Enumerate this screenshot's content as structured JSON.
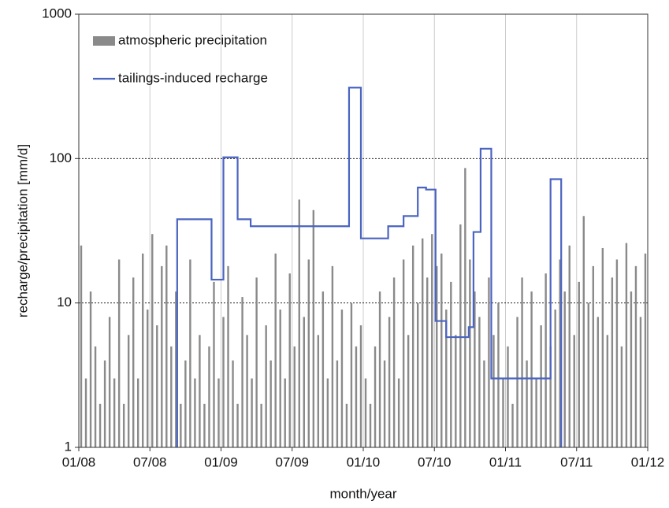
{
  "chart_data": {
    "type": "bar-line",
    "xlabel": "month/year",
    "ylabel": "recharge/precipitation [mm/d]",
    "xlim": [
      0,
      48
    ],
    "xticks": [
      {
        "value": 0,
        "label": "01/08"
      },
      {
        "value": 6,
        "label": "07/08"
      },
      {
        "value": 12,
        "label": "01/09"
      },
      {
        "value": 18,
        "label": "07/09"
      },
      {
        "value": 24,
        "label": "01/10"
      },
      {
        "value": 30,
        "label": "07/10"
      },
      {
        "value": 36,
        "label": "01/11"
      },
      {
        "value": 42,
        "label": "07/11"
      },
      {
        "value": 48,
        "label": "01/12"
      }
    ],
    "ylim": [
      1,
      1000
    ],
    "yticks": [
      1,
      10,
      100,
      1000
    ],
    "log_y": true,
    "grid": true,
    "legend": "upper left",
    "series": [
      {
        "name": "atmospheric precipitation",
        "kind": "bar",
        "color": "#8a8a8a",
        "x": [
          0.2,
          0.6,
          1.0,
          1.4,
          1.8,
          2.2,
          2.6,
          3.0,
          3.4,
          3.8,
          4.2,
          4.6,
          5.0,
          5.4,
          5.8,
          6.2,
          6.6,
          7.0,
          7.4,
          7.8,
          8.2,
          8.6,
          9.0,
          9.4,
          9.8,
          10.2,
          10.6,
          11.0,
          11.4,
          11.8,
          12.2,
          12.6,
          13.0,
          13.4,
          13.8,
          14.2,
          14.6,
          15.0,
          15.4,
          15.8,
          16.2,
          16.6,
          17.0,
          17.4,
          17.8,
          18.2,
          18.6,
          19.0,
          19.4,
          19.8,
          20.2,
          20.6,
          21.0,
          21.4,
          21.8,
          22.2,
          22.6,
          23.0,
          23.4,
          23.8,
          24.2,
          24.6,
          25.0,
          25.4,
          25.8,
          26.2,
          26.6,
          27.0,
          27.4,
          27.8,
          28.2,
          28.6,
          29.0,
          29.4,
          29.8,
          30.2,
          30.6,
          31.0,
          31.4,
          31.8,
          32.2,
          32.6,
          33.0,
          33.4,
          33.8,
          34.2,
          34.6,
          35.0,
          35.4,
          35.8,
          36.2,
          36.6,
          37.0,
          37.4,
          37.8,
          38.2,
          38.6,
          39.0,
          39.4,
          39.8,
          40.2,
          40.6,
          41.0,
          41.4,
          41.8,
          42.2,
          42.6,
          43.0,
          43.4,
          43.8,
          44.2,
          44.6,
          45.0,
          45.4,
          45.8,
          46.2,
          46.6,
          47.0,
          47.4,
          47.8
        ],
        "values": [
          25,
          3,
          12,
          5,
          2,
          4,
          8,
          3,
          20,
          2,
          6,
          15,
          3,
          22,
          9,
          30,
          7,
          18,
          25,
          5,
          12,
          2,
          4,
          20,
          3,
          6,
          2,
          5,
          14,
          3,
          8,
          18,
          4,
          2,
          11,
          6,
          3,
          15,
          2,
          7,
          4,
          22,
          9,
          3,
          16,
          5,
          52,
          8,
          20,
          44,
          6,
          12,
          3,
          18,
          4,
          9,
          2,
          10,
          5,
          7,
          3,
          2,
          5,
          12,
          4,
          8,
          15,
          3,
          20,
          6,
          25,
          10,
          28,
          15,
          30,
          18,
          22,
          9,
          14,
          6,
          35,
          86,
          20,
          12,
          8,
          4,
          15,
          6,
          10,
          3,
          5,
          2,
          8,
          15,
          4,
          12,
          3,
          7,
          16,
          5,
          9,
          20,
          12,
          25,
          6,
          14,
          40,
          10,
          18,
          8,
          24,
          6,
          15,
          20,
          5,
          26,
          12,
          18,
          8,
          22
        ]
      },
      {
        "name": "tailings-induced recharge",
        "kind": "line",
        "color": "#4a64c0",
        "x": [
          8.3,
          8.3,
          11.2,
          11.2,
          12.2,
          12.2,
          13.4,
          13.4,
          14.5,
          14.5,
          22.8,
          22.8,
          23.8,
          23.8,
          26.1,
          26.1,
          27.4,
          27.4,
          28.6,
          28.6,
          29.3,
          29.3,
          30.1,
          30.1,
          31.0,
          31.0,
          32.9,
          32.9,
          33.3,
          33.3,
          33.9,
          33.9,
          34.8,
          34.8,
          39.8,
          39.8,
          40.7,
          40.7
        ],
        "values": [
          1,
          38,
          38,
          14.5,
          14.5,
          102,
          102,
          38,
          38,
          34,
          34,
          310,
          310,
          28,
          28,
          34,
          34,
          40,
          40,
          63,
          63,
          61,
          61,
          7.5,
          7.5,
          5.8,
          5.8,
          6.8,
          6.8,
          31,
          31,
          117,
          117,
          3,
          3,
          72,
          72,
          1
        ]
      }
    ]
  }
}
